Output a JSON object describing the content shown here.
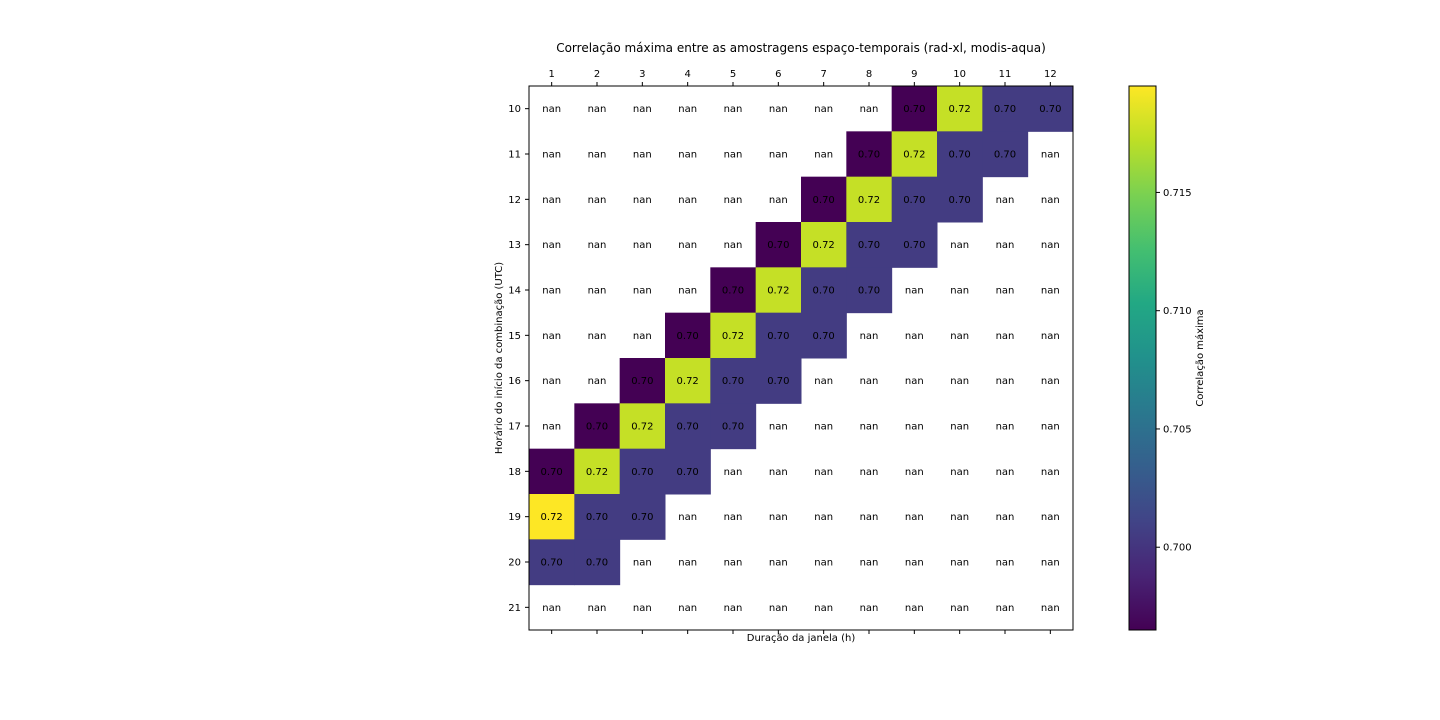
{
  "chart_data": {
    "type": "heatmap",
    "title": "Correlação máxima entre as amostragens espaço-temporais (rad-xl, modis-aqua)",
    "xlabel": "Duração da janela (h)",
    "ylabel": "Horário do início da combinação (UTC)",
    "x_categories": [
      "1",
      "2",
      "3",
      "4",
      "5",
      "6",
      "7",
      "8",
      "9",
      "10",
      "11",
      "12"
    ],
    "y_categories": [
      "10",
      "11",
      "12",
      "13",
      "14",
      "15",
      "16",
      "17",
      "18",
      "19",
      "20",
      "21"
    ],
    "values": [
      [
        null,
        null,
        null,
        null,
        null,
        null,
        null,
        null,
        0.6965,
        0.7175,
        0.7005,
        0.7005
      ],
      [
        null,
        null,
        null,
        null,
        null,
        null,
        null,
        0.6965,
        0.7175,
        0.7005,
        0.7005,
        null
      ],
      [
        null,
        null,
        null,
        null,
        null,
        null,
        0.6965,
        0.7175,
        0.7005,
        0.7005,
        null,
        null
      ],
      [
        null,
        null,
        null,
        null,
        null,
        0.6965,
        0.7175,
        0.7005,
        0.7005,
        null,
        null,
        null
      ],
      [
        null,
        null,
        null,
        null,
        0.6965,
        0.7175,
        0.7005,
        0.7005,
        null,
        null,
        null,
        null
      ],
      [
        null,
        null,
        null,
        0.6965,
        0.7175,
        0.7005,
        0.7005,
        null,
        null,
        null,
        null,
        null
      ],
      [
        null,
        null,
        0.6965,
        0.7175,
        0.7005,
        0.7005,
        null,
        null,
        null,
        null,
        null,
        null
      ],
      [
        null,
        0.6965,
        0.7175,
        0.7005,
        0.7005,
        null,
        null,
        null,
        null,
        null,
        null,
        null
      ],
      [
        0.6965,
        0.7175,
        0.7005,
        0.7005,
        null,
        null,
        null,
        null,
        null,
        null,
        null,
        null
      ],
      [
        0.7195,
        0.7005,
        0.7005,
        null,
        null,
        null,
        null,
        null,
        null,
        null,
        null,
        null
      ],
      [
        0.7005,
        0.7005,
        null,
        null,
        null,
        null,
        null,
        null,
        null,
        null,
        null,
        null
      ],
      [
        null,
        null,
        null,
        null,
        null,
        null,
        null,
        null,
        null,
        null,
        null,
        null
      ]
    ],
    "cell_labels": [
      [
        "nan",
        "nan",
        "nan",
        "nan",
        "nan",
        "nan",
        "nan",
        "nan",
        "0.70",
        "0.72",
        "0.70",
        "0.70"
      ],
      [
        "nan",
        "nan",
        "nan",
        "nan",
        "nan",
        "nan",
        "nan",
        "0.70",
        "0.72",
        "0.70",
        "0.70",
        "nan"
      ],
      [
        "nan",
        "nan",
        "nan",
        "nan",
        "nan",
        "nan",
        "0.70",
        "0.72",
        "0.70",
        "0.70",
        "nan",
        "nan"
      ],
      [
        "nan",
        "nan",
        "nan",
        "nan",
        "nan",
        "0.70",
        "0.72",
        "0.70",
        "0.70",
        "nan",
        "nan",
        "nan"
      ],
      [
        "nan",
        "nan",
        "nan",
        "nan",
        "0.70",
        "0.72",
        "0.70",
        "0.70",
        "nan",
        "nan",
        "nan",
        "nan"
      ],
      [
        "nan",
        "nan",
        "nan",
        "0.70",
        "0.72",
        "0.70",
        "0.70",
        "nan",
        "nan",
        "nan",
        "nan",
        "nan"
      ],
      [
        "nan",
        "nan",
        "0.70",
        "0.72",
        "0.70",
        "0.70",
        "nan",
        "nan",
        "nan",
        "nan",
        "nan",
        "nan"
      ],
      [
        "nan",
        "0.70",
        "0.72",
        "0.70",
        "0.70",
        "nan",
        "nan",
        "nan",
        "nan",
        "nan",
        "nan",
        "nan"
      ],
      [
        "0.70",
        "0.72",
        "0.70",
        "0.70",
        "nan",
        "nan",
        "nan",
        "nan",
        "nan",
        "nan",
        "nan",
        "nan"
      ],
      [
        "0.72",
        "0.70",
        "0.70",
        "nan",
        "nan",
        "nan",
        "nan",
        "nan",
        "nan",
        "nan",
        "nan",
        "nan"
      ],
      [
        "0.70",
        "0.70",
        "nan",
        "nan",
        "nan",
        "nan",
        "nan",
        "nan",
        "nan",
        "nan",
        "nan",
        "nan"
      ],
      [
        "nan",
        "nan",
        "nan",
        "nan",
        "nan",
        "nan",
        "nan",
        "nan",
        "nan",
        "nan",
        "nan",
        "nan"
      ]
    ],
    "x_axis_position": "top",
    "colorbar": {
      "label": "Correlação máxima",
      "range": [
        0.6965,
        0.7195
      ],
      "ticks": [
        0.7,
        0.705,
        0.71,
        0.715
      ],
      "tick_labels": [
        "0.700",
        "0.705",
        "0.710",
        "0.715"
      ],
      "colormap": "viridis"
    },
    "grid": false
  }
}
